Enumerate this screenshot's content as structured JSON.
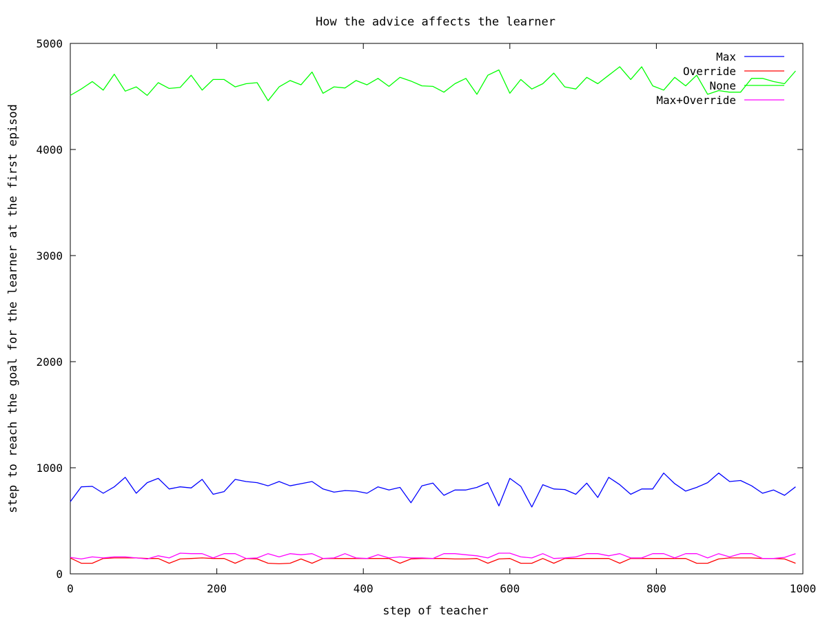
{
  "chart_data": {
    "type": "line",
    "title": "How the advice affects the learner",
    "xlabel": "step of teacher",
    "ylabel": "step to reach the goal for the learner at the first episod",
    "xlim": [
      0,
      1000
    ],
    "ylim": [
      0,
      5000
    ],
    "xticks": [
      0,
      200,
      400,
      600,
      800,
      1000
    ],
    "yticks": [
      0,
      1000,
      2000,
      3000,
      4000,
      5000
    ],
    "grid": false,
    "legend_position": "top-right",
    "x": [
      0,
      15,
      30,
      45,
      60,
      75,
      90,
      105,
      120,
      135,
      150,
      165,
      180,
      195,
      210,
      225,
      240,
      255,
      270,
      285,
      300,
      315,
      330,
      345,
      360,
      375,
      390,
      405,
      420,
      435,
      450,
      465,
      480,
      495,
      510,
      525,
      540,
      555,
      570,
      585,
      600,
      615,
      630,
      645,
      660,
      675,
      690,
      705,
      720,
      735,
      750,
      765,
      780,
      795,
      810,
      825,
      840,
      855,
      870,
      885,
      900,
      915,
      930,
      945,
      960,
      975,
      990
    ],
    "series": [
      {
        "name": "Max",
        "color": "#0000ff",
        "values": [
          680,
          820,
          825,
          760,
          820,
          910,
          760,
          860,
          900,
          800,
          820,
          810,
          890,
          750,
          775,
          890,
          870,
          860,
          830,
          870,
          830,
          850,
          870,
          800,
          770,
          785,
          780,
          760,
          820,
          790,
          815,
          670,
          830,
          855,
          740,
          790,
          790,
          815,
          860,
          640,
          900,
          825,
          630,
          840,
          800,
          795,
          750,
          855,
          720,
          910,
          840,
          750,
          800,
          800,
          950,
          850,
          780,
          815,
          860,
          950,
          870,
          880,
          830,
          760,
          790,
          740,
          820
        ]
      },
      {
        "name": "Override",
        "color": "#ff0000",
        "values": [
          150,
          100,
          100,
          145,
          150,
          150,
          150,
          145,
          145,
          100,
          140,
          145,
          150,
          145,
          145,
          100,
          145,
          140,
          100,
          95,
          100,
          140,
          100,
          145,
          145,
          145,
          145,
          145,
          145,
          145,
          100,
          140,
          145,
          145,
          145,
          140,
          140,
          145,
          100,
          140,
          145,
          100,
          100,
          145,
          100,
          145,
          145,
          145,
          145,
          145,
          100,
          145,
          145,
          145,
          145,
          145,
          145,
          100,
          100,
          140,
          150,
          150,
          150,
          145,
          145,
          140,
          100
        ]
      },
      {
        "name": "None",
        "color": "#00ff00",
        "values": [
          4510,
          4570,
          4640,
          4560,
          4710,
          4550,
          4590,
          4510,
          4630,
          4575,
          4585,
          4700,
          4560,
          4660,
          4660,
          4590,
          4620,
          4630,
          4460,
          4590,
          4650,
          4610,
          4730,
          4530,
          4590,
          4580,
          4650,
          4610,
          4670,
          4595,
          4680,
          4645,
          4600,
          4595,
          4540,
          4620,
          4670,
          4520,
          4700,
          4750,
          4530,
          4660,
          4570,
          4620,
          4720,
          4590,
          4570,
          4680,
          4620,
          4700,
          4780,
          4660,
          4780,
          4600,
          4560,
          4680,
          4600,
          4700,
          4520,
          4555,
          4540,
          4540,
          4670,
          4670,
          4640,
          4620,
          4740
        ]
      },
      {
        "name": "Max+Override",
        "color": "#ff00ff",
        "values": [
          155,
          140,
          160,
          150,
          160,
          160,
          150,
          140,
          170,
          150,
          195,
          190,
          190,
          150,
          190,
          190,
          145,
          150,
          190,
          160,
          190,
          180,
          190,
          145,
          150,
          190,
          150,
          145,
          180,
          150,
          160,
          150,
          150,
          145,
          190,
          190,
          180,
          170,
          150,
          195,
          195,
          160,
          150,
          190,
          145,
          150,
          160,
          190,
          190,
          170,
          190,
          150,
          150,
          190,
          190,
          150,
          190,
          190,
          150,
          190,
          160,
          190,
          190,
          145,
          145,
          155,
          190
        ]
      }
    ]
  }
}
